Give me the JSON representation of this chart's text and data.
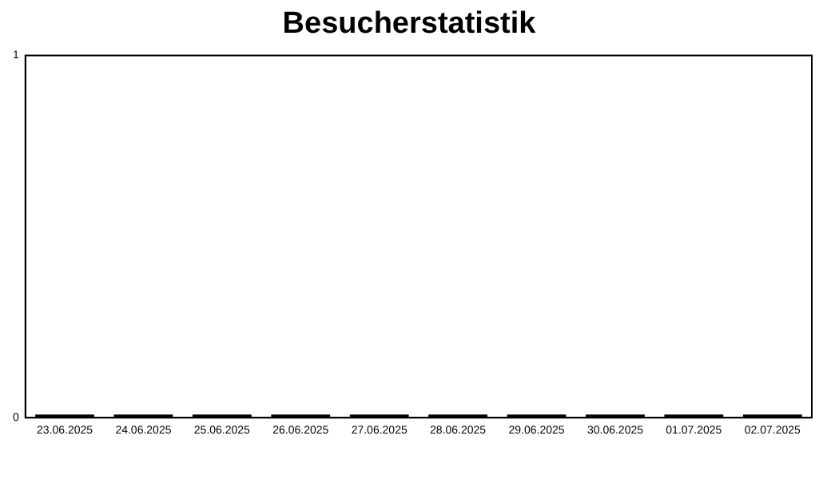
{
  "chart_data": {
    "type": "bar",
    "title": "Besucherstatistik",
    "categories": [
      "23.06.2025",
      "24.06.2025",
      "25.06.2025",
      "26.06.2025",
      "27.06.2025",
      "28.06.2025",
      "29.06.2025",
      "30.06.2025",
      "01.07.2025",
      "02.07.2025"
    ],
    "values": [
      0,
      0,
      0,
      0,
      0,
      0,
      0,
      0,
      0,
      0
    ],
    "color": "#000000",
    "ylim": [
      0,
      1
    ],
    "yticks": [
      0,
      1
    ]
  }
}
